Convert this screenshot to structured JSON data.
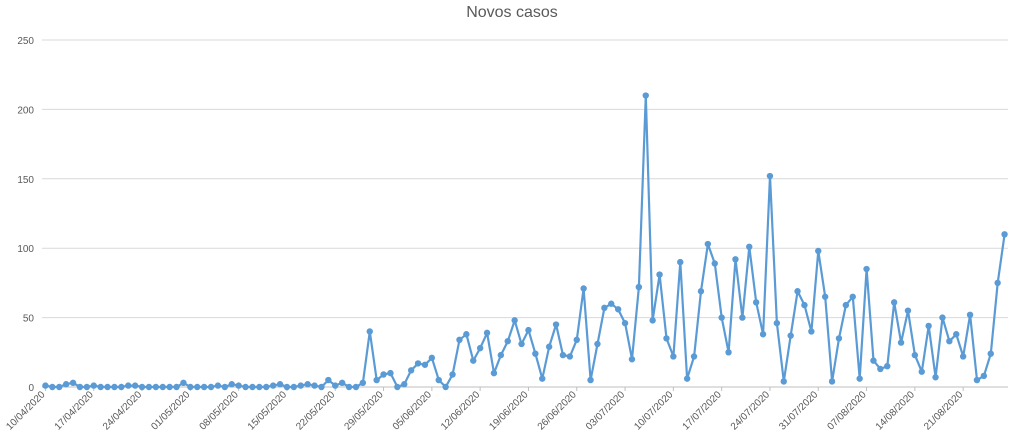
{
  "chart_data": {
    "type": "line",
    "title": "Novos casos",
    "xlabel": "",
    "ylabel": "",
    "ylim": [
      0,
      250
    ],
    "yticks": [
      0,
      50,
      100,
      150,
      200,
      250
    ],
    "grid": "horizontal",
    "legend": "none",
    "color": "#5b9bd5",
    "x_tick_labels": [
      "10/04/2020",
      "17/04/2020",
      "24/04/2020",
      "01/05/2020",
      "08/05/2020",
      "15/05/2020",
      "22/05/2020",
      "29/05/2020",
      "05/06/2020",
      "12/06/2020",
      "19/06/2020",
      "26/06/2020",
      "03/07/2020",
      "10/07/2020",
      "17/07/2020",
      "24/07/2020",
      "31/07/2020",
      "07/08/2020",
      "14/08/2020",
      "21/08/2020"
    ],
    "x_start": "10/04/2020",
    "x_end": "28/08/2020",
    "series": [
      {
        "values": [
          1,
          0,
          0,
          2,
          3,
          0,
          0,
          1,
          0,
          0,
          0,
          0,
          1,
          1,
          0,
          0,
          0,
          0,
          0,
          0,
          3,
          0,
          0,
          0,
          0,
          1,
          0,
          2,
          1,
          0,
          0,
          0,
          0,
          1,
          2,
          0,
          0,
          1,
          2,
          1,
          0,
          5,
          1,
          3,
          0,
          0,
          3,
          40,
          5,
          9,
          10,
          0,
          2,
          12,
          17,
          16,
          21,
          5,
          0,
          9,
          34,
          38,
          19,
          28,
          39,
          10,
          23,
          33,
          48,
          31,
          41,
          24,
          6,
          29,
          45,
          23,
          22,
          34,
          71,
          5,
          31,
          57,
          60,
          56,
          46,
          20,
          72,
          210,
          48,
          81,
          35,
          22,
          90,
          6,
          22,
          69,
          103,
          89,
          50,
          25,
          92,
          50,
          101,
          61,
          38,
          152,
          46,
          4,
          37,
          69,
          59,
          40,
          98,
          65,
          4,
          35,
          59,
          65,
          6,
          85,
          19,
          13,
          15,
          61,
          32,
          55,
          23,
          11,
          44,
          7,
          50,
          33,
          38,
          22,
          52,
          5,
          8,
          24,
          75,
          110
        ]
      }
    ]
  }
}
